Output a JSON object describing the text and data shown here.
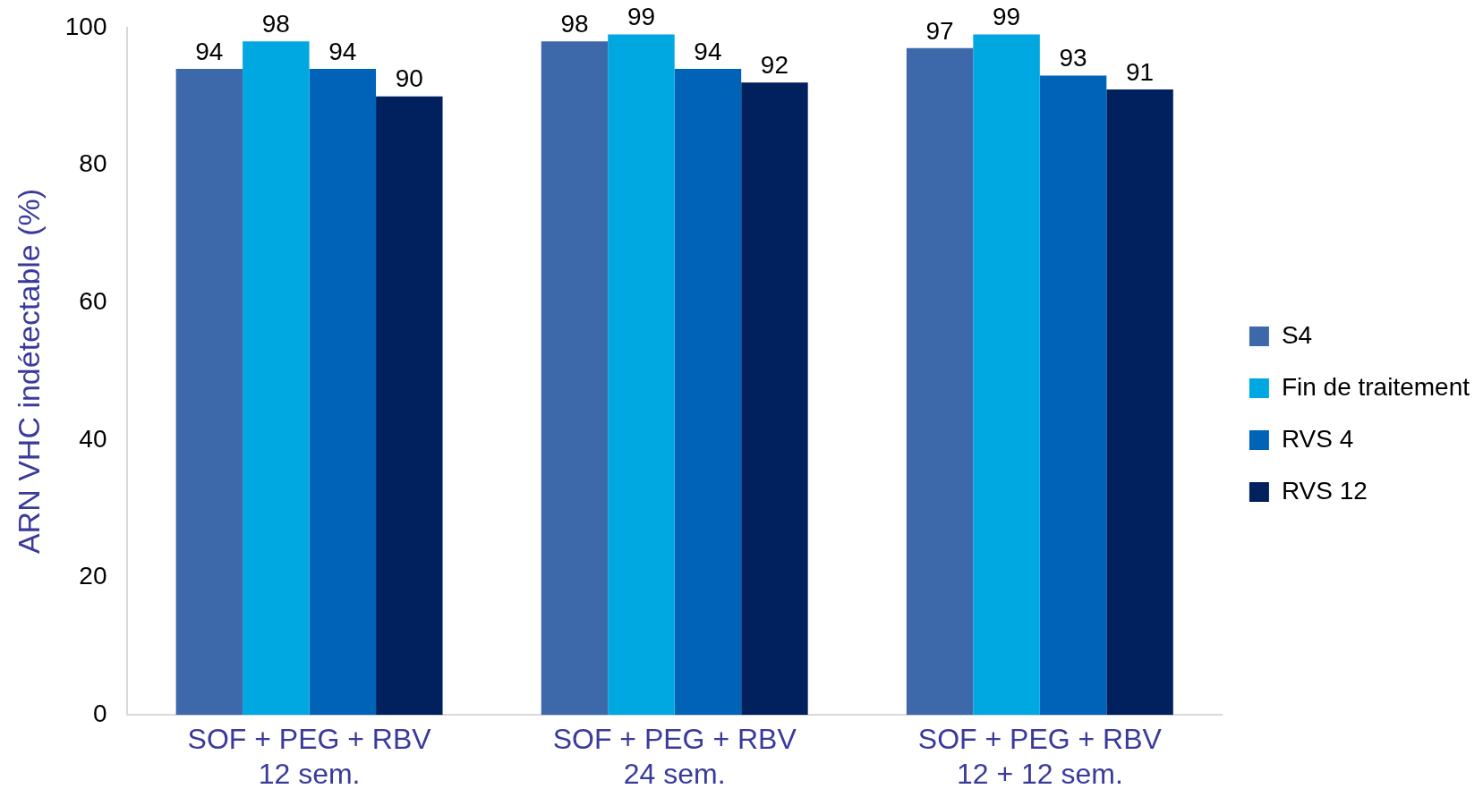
{
  "chart_data": {
    "type": "bar",
    "ylabel": "ARN VHC indétectable (%)",
    "categories": [
      "SOF + PEG + RBV\n12 sem.",
      "SOF + PEG + RBV\n24 sem.",
      "SOF + PEG + RBV\n12 + 12 sem."
    ],
    "series": [
      {
        "name": "S4",
        "color": "#3d68aa",
        "values": [
          94,
          98,
          97
        ]
      },
      {
        "name": "Fin de traitement",
        "color": "#00a8e2",
        "values": [
          98,
          99,
          99
        ]
      },
      {
        "name": "RVS 4",
        "color": "#0063b8",
        "values": [
          94,
          94,
          93
        ]
      },
      {
        "name": "RVS 12",
        "color": "#00205e",
        "values": [
          90,
          92,
          91
        ]
      }
    ],
    "ylim": [
      0,
      100
    ],
    "yticks": [
      0,
      20,
      40,
      60,
      80,
      100
    ],
    "grid": false,
    "legend": "right",
    "data_labels": true
  }
}
